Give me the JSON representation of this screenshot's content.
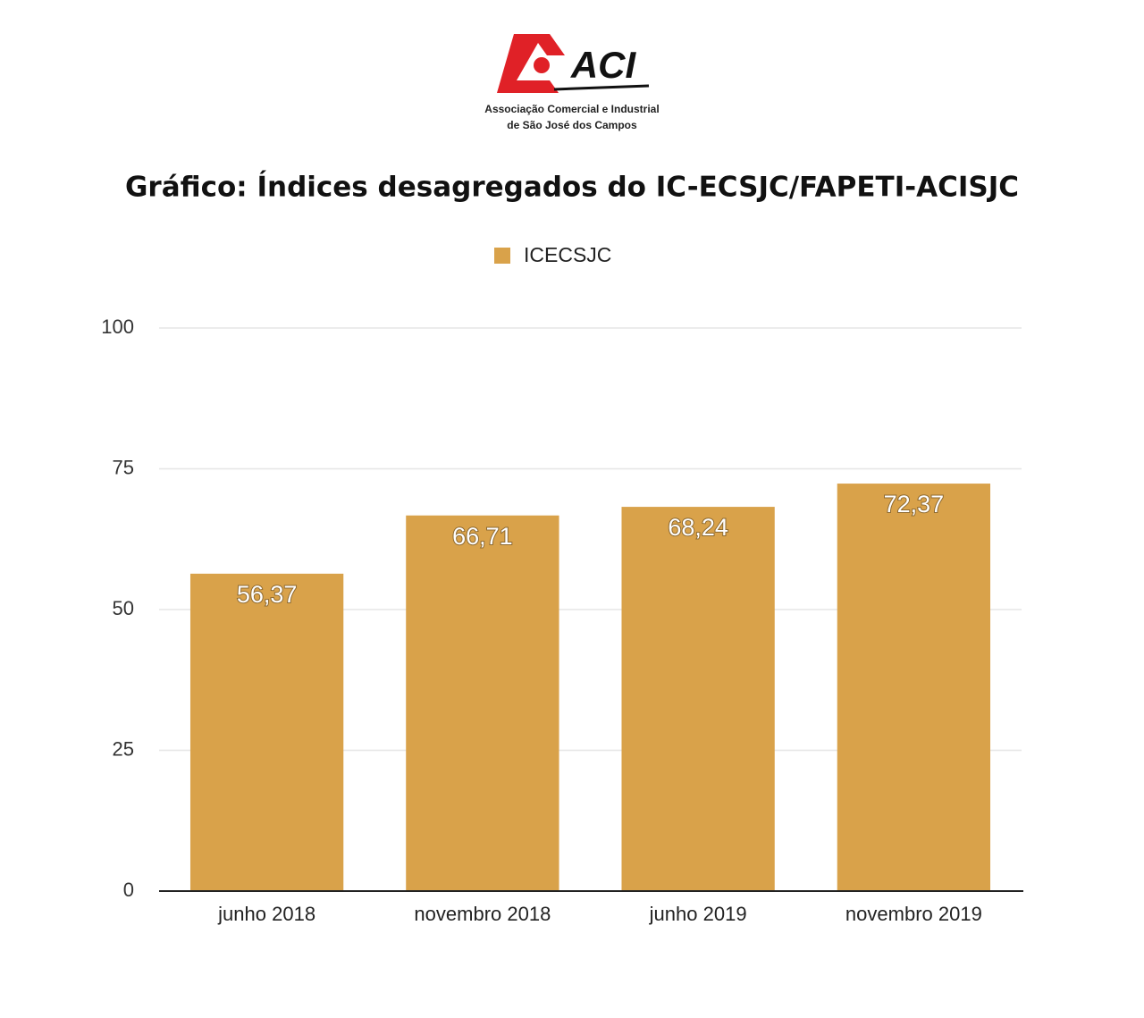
{
  "logo": {
    "name": "ACI",
    "lines": [
      "Associação Comercial e Industrial",
      "de São José dos Campos"
    ]
  },
  "chart_data": {
    "type": "bar",
    "title": "Gráfico: Índices desagregados do IC-ECSJC/FAPETI-ACISJC",
    "categories": [
      "junho 2018",
      "novembro 2018",
      "junho 2019",
      "novembro 2019"
    ],
    "series": [
      {
        "name": "ICECSJC",
        "color": "#d9a24a",
        "values": [
          56.37,
          66.71,
          68.24,
          72.37
        ],
        "value_labels": [
          "56,37",
          "66,71",
          "68,24",
          "72,37"
        ]
      }
    ],
    "ylim": [
      0,
      100
    ],
    "yticks": [
      0,
      25,
      50,
      75,
      100
    ],
    "grid": true,
    "legend": "top"
  }
}
